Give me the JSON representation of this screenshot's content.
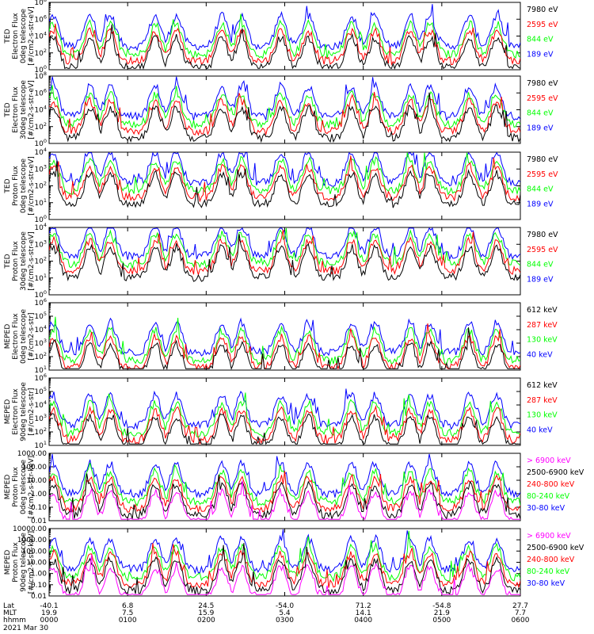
{
  "chart_data": {
    "type": "line",
    "date_label": "2021 Mar 30",
    "xaxis": {
      "row_labels": [
        "Lat",
        "MLT",
        "hhmm"
      ],
      "ticks": [
        {
          "lat": "-40.1",
          "mlt": "19.9",
          "hhmm": "0000"
        },
        {
          "lat": "6.8",
          "mlt": "7.5",
          "hhmm": "0100"
        },
        {
          "lat": "24.5",
          "mlt": "15.9",
          "hhmm": "0200"
        },
        {
          "lat": "-54.0",
          "mlt": "5.4",
          "hhmm": "0300"
        },
        {
          "lat": "71.2",
          "mlt": "14.1",
          "hhmm": "0400"
        },
        {
          "lat": "-54.8",
          "mlt": "21.9",
          "hhmm": "0500"
        },
        {
          "lat": "27.7",
          "mlt": "7.7",
          "hhmm": "0600"
        }
      ],
      "range_hours": [
        0,
        6
      ]
    },
    "colors": {
      "blue": "#0000ff",
      "red": "#ff0000",
      "green": "#00ff00",
      "black": "#000000",
      "magenta": "#ff00ff"
    },
    "panels": [
      {
        "ylabel": [
          "TED",
          "Electron Flux",
          "0deg telescope",
          "[#/cm2-s-str-eV]"
        ],
        "ticks": [
          "10^0",
          "10^2",
          "10^4",
          "10^6",
          "10^8"
        ],
        "ylog": [
          0,
          8
        ],
        "background_level": 2.8,
        "series": [
          {
            "name": "7980 eV",
            "color": "#000000"
          },
          {
            "name": "2595 eV",
            "color": "#ff0000"
          },
          {
            "name": "844 eV",
            "color": "#00ff00"
          },
          {
            "name": "189 eV",
            "color": "#0000ff"
          }
        ]
      },
      {
        "ylabel": [
          "TED",
          "Electron Flux",
          "30deg telescope",
          "[#/cm2-s-str-eV]"
        ],
        "ticks": [
          "10^0",
          "10^2",
          "10^4",
          "10^6",
          "10^8"
        ],
        "ylog": [
          0,
          8
        ],
        "background_level": 3.2,
        "series": [
          {
            "name": "7980 eV",
            "color": "#000000"
          },
          {
            "name": "2595 eV",
            "color": "#ff0000"
          },
          {
            "name": "844 eV",
            "color": "#00ff00"
          },
          {
            "name": "189 eV",
            "color": "#0000ff"
          }
        ]
      },
      {
        "ylabel": [
          "TED",
          "Proton Flux",
          "0deg telescope",
          "[#/cm2-s-str-eV]"
        ],
        "ticks": [
          "10^0",
          "10^1",
          "10^2",
          "10^3",
          "10^4"
        ],
        "ylog": [
          0,
          4
        ],
        "background_level": 2.2,
        "series": [
          {
            "name": "7980 eV",
            "color": "#000000"
          },
          {
            "name": "2595 eV",
            "color": "#ff0000"
          },
          {
            "name": "844 eV",
            "color": "#00ff00"
          },
          {
            "name": "189 eV",
            "color": "#0000ff"
          }
        ]
      },
      {
        "ylabel": [
          "TED",
          "Proton Flux",
          "30deg telescope",
          "[#/cm2-s-str-eV]"
        ],
        "ticks": [
          "10^0",
          "10^1",
          "10^2",
          "10^3",
          "10^4"
        ],
        "ylog": [
          0,
          4
        ],
        "background_level": 2.3,
        "series": [
          {
            "name": "7980 eV",
            "color": "#000000"
          },
          {
            "name": "2595 eV",
            "color": "#ff0000"
          },
          {
            "name": "844 eV",
            "color": "#00ff00"
          },
          {
            "name": "189 eV",
            "color": "#0000ff"
          }
        ]
      },
      {
        "ylabel": [
          "MEPED",
          "Electron Flux",
          "0deg telescope",
          "[#/cm2-s-str]"
        ],
        "ticks": [
          "10^1",
          "10^2",
          "10^3",
          "10^4",
          "10^5",
          "10^6"
        ],
        "ylog": [
          1,
          6
        ],
        "background_level": 2.3,
        "series": [
          {
            "name": "612 keV",
            "color": "#000000"
          },
          {
            "name": "287 keV",
            "color": "#ff0000"
          },
          {
            "name": "130 keV",
            "color": "#00ff00"
          },
          {
            "name": "40 keV",
            "color": "#0000ff"
          }
        ]
      },
      {
        "ylabel": [
          "MEPED",
          "Electron Flux",
          "90deg telescope",
          "[#/cm2-s-str]"
        ],
        "ticks": [
          "10^1",
          "10^2",
          "10^3",
          "10^4",
          "10^5",
          "10^6"
        ],
        "ylog": [
          1,
          6
        ],
        "background_level": 2.5,
        "series": [
          {
            "name": "612 keV",
            "color": "#000000"
          },
          {
            "name": "287 keV",
            "color": "#ff0000"
          },
          {
            "name": "130 keV",
            "color": "#00ff00"
          },
          {
            "name": "40 keV",
            "color": "#0000ff"
          }
        ]
      },
      {
        "ylabel": [
          "MEPED",
          "Proton Flux",
          "0deg telescope",
          "[#/cm2-s-str-keV]"
        ],
        "ticks": [
          "0.01",
          "0.10",
          "1.00",
          "10.00",
          "100.00",
          "1000.00"
        ],
        "ylog": [
          -2,
          3
        ],
        "background_level": 0.0,
        "series": [
          {
            "name": "> 6900 keV",
            "color": "#ff00ff"
          },
          {
            "name": "2500-6900 keV",
            "color": "#000000"
          },
          {
            "name": "240-800 keV",
            "color": "#ff0000"
          },
          {
            "name": "80-240 keV",
            "color": "#00ff00"
          },
          {
            "name": "30-80 keV",
            "color": "#0000ff"
          }
        ]
      },
      {
        "ylabel": [
          "MEPED",
          "Proton Flux",
          "90deg telescope",
          "[#/cm2-s-str-keV]"
        ],
        "ticks": [
          "0.01",
          "0.10",
          "1.00",
          "10.00",
          "100.00",
          "1000.00",
          "10000.00"
        ],
        "ylog": [
          -2,
          4
        ],
        "background_level": 0.4,
        "series": [
          {
            "name": "> 6900 keV",
            "color": "#ff00ff"
          },
          {
            "name": "2500-6900 keV",
            "color": "#000000"
          },
          {
            "name": "240-800 keV",
            "color": "#ff0000"
          },
          {
            "name": "80-240 keV",
            "color": "#00ff00"
          },
          {
            "name": "30-80 keV",
            "color": "#0000ff"
          }
        ]
      }
    ]
  }
}
